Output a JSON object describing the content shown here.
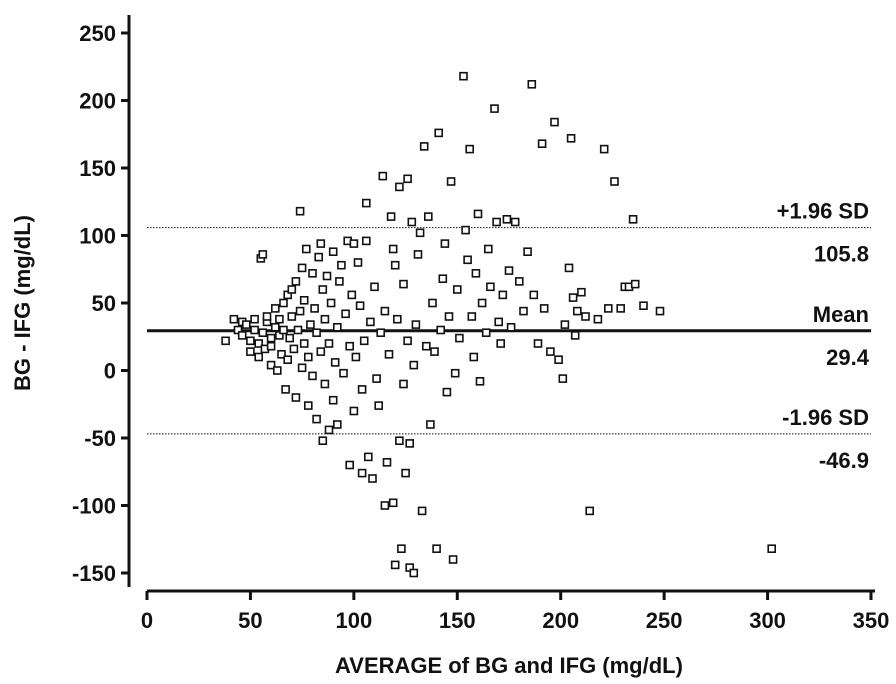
{
  "chart_data": {
    "type": "scatter",
    "xlabel": "AVERAGE of BG and IFG (mg/dL)",
    "ylabel": "BG - IFG (mg/dL)",
    "xlim": [
      0,
      350
    ],
    "ylim": [
      -150,
      250
    ],
    "x_ticks": [
      "0",
      "50",
      "100",
      "150",
      "200",
      "250",
      "300",
      "350"
    ],
    "y_ticks": [
      "-150",
      "-100",
      "-50",
      "0",
      "50",
      "100",
      "150",
      "200",
      "250"
    ],
    "grid": false,
    "reference_lines": {
      "mean": {
        "value": 29.4,
        "label": "Mean",
        "value_label": "29.4",
        "style": "solid"
      },
      "upper": {
        "value": 105.8,
        "label": "+1.96 SD",
        "value_label": "105.8",
        "style": "dotted"
      },
      "lower": {
        "value": -46.9,
        "label": "-1.96 SD",
        "value_label": "-46.9",
        "style": "dotted"
      }
    },
    "series": [
      {
        "points": [
          [
            38,
            22
          ],
          [
            42,
            38
          ],
          [
            44,
            30
          ],
          [
            46,
            26
          ],
          [
            46,
            36
          ],
          [
            48,
            34
          ],
          [
            50,
            22
          ],
          [
            50,
            14
          ],
          [
            52,
            30
          ],
          [
            52,
            38
          ],
          [
            54,
            20
          ],
          [
            54,
            10
          ],
          [
            55,
            83
          ],
          [
            56,
            86
          ],
          [
            56,
            28
          ],
          [
            57,
            16
          ],
          [
            58,
            36
          ],
          [
            58,
            40
          ],
          [
            60,
            24
          ],
          [
            60,
            4
          ],
          [
            60,
            18
          ],
          [
            62,
            46
          ],
          [
            62,
            32
          ],
          [
            63,
            0
          ],
          [
            64,
            26
          ],
          [
            64,
            38
          ],
          [
            65,
            12
          ],
          [
            66,
            50
          ],
          [
            66,
            30
          ],
          [
            67,
            -14
          ],
          [
            68,
            8
          ],
          [
            68,
            56
          ],
          [
            69,
            24
          ],
          [
            70,
            40
          ],
          [
            70,
            60
          ],
          [
            71,
            16
          ],
          [
            72,
            66
          ],
          [
            72,
            -20
          ],
          [
            73,
            30
          ],
          [
            74,
            118
          ],
          [
            74,
            44
          ],
          [
            75,
            2
          ],
          [
            75,
            76
          ],
          [
            76,
            20
          ],
          [
            76,
            52
          ],
          [
            77,
            90
          ],
          [
            78,
            -26
          ],
          [
            78,
            10
          ],
          [
            79,
            34
          ],
          [
            80,
            72
          ],
          [
            80,
            -4
          ],
          [
            81,
            46
          ],
          [
            82,
            -36
          ],
          [
            82,
            28
          ],
          [
            83,
            84
          ],
          [
            84,
            94
          ],
          [
            84,
            14
          ],
          [
            85,
            -52
          ],
          [
            85,
            60
          ],
          [
            86,
            38
          ],
          [
            86,
            -10
          ],
          [
            87,
            70
          ],
          [
            88,
            -44
          ],
          [
            88,
            20
          ],
          [
            89,
            50
          ],
          [
            90,
            88
          ],
          [
            90,
            -22
          ],
          [
            91,
            6
          ],
          [
            92,
            32
          ],
          [
            92,
            -40
          ],
          [
            93,
            66
          ],
          [
            94,
            78
          ],
          [
            95,
            -2
          ],
          [
            96,
            42
          ],
          [
            97,
            96
          ],
          [
            98,
            -70
          ],
          [
            98,
            18
          ],
          [
            99,
            56
          ],
          [
            100,
            94
          ],
          [
            100,
            -30
          ],
          [
            101,
            10
          ],
          [
            102,
            80
          ],
          [
            103,
            48
          ],
          [
            104,
            -76
          ],
          [
            104,
            -14
          ],
          [
            105,
            22
          ],
          [
            106,
            96
          ],
          [
            106,
            124
          ],
          [
            107,
            -64
          ],
          [
            108,
            36
          ],
          [
            109,
            -80
          ],
          [
            110,
            62
          ],
          [
            111,
            -6
          ],
          [
            112,
            -26
          ],
          [
            113,
            28
          ],
          [
            114,
            144
          ],
          [
            115,
            -100
          ],
          [
            115,
            44
          ],
          [
            116,
            -68
          ],
          [
            117,
            12
          ],
          [
            118,
            114
          ],
          [
            119,
            -98
          ],
          [
            119,
            90
          ],
          [
            120,
            -144
          ],
          [
            120,
            78
          ],
          [
            121,
            38
          ],
          [
            122,
            136
          ],
          [
            122,
            -52
          ],
          [
            123,
            -132
          ],
          [
            124,
            -10
          ],
          [
            124,
            64
          ],
          [
            125,
            -76
          ],
          [
            126,
            142
          ],
          [
            126,
            22
          ],
          [
            127,
            -146
          ],
          [
            127,
            -54
          ],
          [
            128,
            110
          ],
          [
            129,
            -150
          ],
          [
            129,
            4
          ],
          [
            130,
            34
          ],
          [
            131,
            86
          ],
          [
            132,
            102
          ],
          [
            133,
            -104
          ],
          [
            134,
            166
          ],
          [
            135,
            18
          ],
          [
            136,
            114
          ],
          [
            137,
            -40
          ],
          [
            138,
            50
          ],
          [
            139,
            14
          ],
          [
            140,
            -132
          ],
          [
            141,
            176
          ],
          [
            142,
            30
          ],
          [
            143,
            68
          ],
          [
            144,
            94
          ],
          [
            145,
            -16
          ],
          [
            146,
            40
          ],
          [
            147,
            140
          ],
          [
            148,
            -140
          ],
          [
            149,
            -2
          ],
          [
            150,
            60
          ],
          [
            151,
            24
          ],
          [
            153,
            218
          ],
          [
            154,
            104
          ],
          [
            155,
            82
          ],
          [
            156,
            164
          ],
          [
            157,
            40
          ],
          [
            158,
            10
          ],
          [
            159,
            72
          ],
          [
            160,
            116
          ],
          [
            161,
            -8
          ],
          [
            162,
            50
          ],
          [
            164,
            28
          ],
          [
            165,
            90
          ],
          [
            166,
            62
          ],
          [
            168,
            194
          ],
          [
            169,
            110
          ],
          [
            170,
            36
          ],
          [
            171,
            20
          ],
          [
            172,
            56
          ],
          [
            174,
            112
          ],
          [
            175,
            74
          ],
          [
            176,
            32
          ],
          [
            178,
            110
          ],
          [
            180,
            66
          ],
          [
            182,
            44
          ],
          [
            184,
            88
          ],
          [
            186,
            212
          ],
          [
            187,
            56
          ],
          [
            189,
            20
          ],
          [
            191,
            168
          ],
          [
            192,
            46
          ],
          [
            195,
            14
          ],
          [
            197,
            184
          ],
          [
            199,
            8
          ],
          [
            201,
            -6
          ],
          [
            202,
            34
          ],
          [
            204,
            76
          ],
          [
            205,
            172
          ],
          [
            206,
            54
          ],
          [
            207,
            26
          ],
          [
            208,
            44
          ],
          [
            210,
            58
          ],
          [
            212,
            40
          ],
          [
            214,
            -104
          ],
          [
            218,
            38
          ],
          [
            221,
            164
          ],
          [
            223,
            46
          ],
          [
            226,
            140
          ],
          [
            229,
            46
          ],
          [
            231,
            62
          ],
          [
            233,
            62
          ],
          [
            235,
            112
          ],
          [
            236,
            64
          ],
          [
            240,
            48
          ],
          [
            248,
            44
          ],
          [
            302,
            -132
          ]
        ]
      }
    ]
  }
}
